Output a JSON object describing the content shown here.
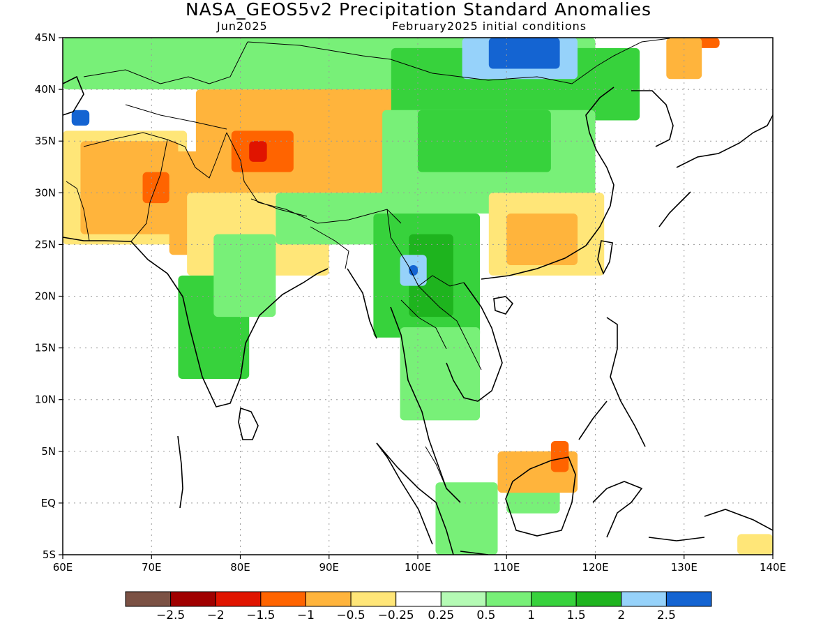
{
  "title": "NASA_GEOS5v2 Precipitation Standard Anomalies",
  "valid_month": "Jun2025",
  "init_conditions": "February2025 initial conditions",
  "colors": {
    "lt_m25": "#7b5144",
    "m25_m2": "#a00000",
    "m2_m15": "#e01400",
    "m15_m1": "#ff6400",
    "m1_m05": "#ffb43c",
    "m05_m025": "#ffe678",
    "neutral": "#ffffff",
    "p025_p05": "#b4fab4",
    "p05_p1": "#78f078",
    "p1_p15": "#37d23c",
    "p15_p2": "#1eb41e",
    "p2_p25": "#96d2fa",
    "gt_p25": "#1464d2"
  },
  "chart_data": {
    "type": "heatmap",
    "variable": "Precipitation Standard Anomalies",
    "x_range": [
      60,
      140
    ],
    "y_range": [
      -5,
      45
    ],
    "x_ticks": [
      "60E",
      "70E",
      "80E",
      "90E",
      "100E",
      "110E",
      "120E",
      "130E",
      "140E"
    ],
    "y_ticks": [
      "5S",
      "EQ",
      "5N",
      "10N",
      "15N",
      "20N",
      "25N",
      "30N",
      "35N",
      "40N",
      "45N"
    ],
    "colorbar": {
      "labels": [
        "-2.5",
        "-2",
        "-1.5",
        "-1",
        "-0.5",
        "-0.25",
        "0.25",
        "0.5",
        "1",
        "1.5",
        "2",
        "2.5"
      ],
      "bins": [
        "lt_m25",
        "m25_m2",
        "m2_m15",
        "m15_m1",
        "m1_m05",
        "m05_m025",
        "neutral",
        "p025_p05",
        "p05_p1",
        "p1_p15",
        "p15_p2",
        "p2_p25",
        "gt_p25"
      ]
    },
    "regions": [
      {
        "bin": "m05_m025",
        "lon": [
          60,
          74
        ],
        "lat": [
          25,
          36
        ]
      },
      {
        "bin": "m1_m05",
        "lon": [
          62,
          73
        ],
        "lat": [
          26,
          35
        ]
      },
      {
        "bin": "m1_m05",
        "lon": [
          72,
          82
        ],
        "lat": [
          24,
          34
        ]
      },
      {
        "bin": "m15_m1",
        "lon": [
          69,
          72
        ],
        "lat": [
          29,
          32
        ]
      },
      {
        "bin": "m1_m05",
        "lon": [
          75,
          97
        ],
        "lat": [
          30,
          40
        ]
      },
      {
        "bin": "m15_m1",
        "lon": [
          79,
          86
        ],
        "lat": [
          32,
          36
        ]
      },
      {
        "bin": "m2_m15",
        "lon": [
          81,
          83
        ],
        "lat": [
          33,
          35
        ]
      },
      {
        "bin": "m1_m05",
        "lon": [
          86,
          100
        ],
        "lat": [
          38,
          42
        ]
      },
      {
        "bin": "m05_m025",
        "lon": [
          74,
          90
        ],
        "lat": [
          22,
          30
        ]
      },
      {
        "bin": "p05_p1",
        "lon": [
          60,
          120
        ],
        "lat": [
          40,
          45
        ]
      },
      {
        "bin": "p1_p15",
        "lon": [
          97,
          125
        ],
        "lat": [
          37,
          44
        ]
      },
      {
        "bin": "p2_p25",
        "lon": [
          105,
          118
        ],
        "lat": [
          41,
          45
        ]
      },
      {
        "bin": "gt_p25",
        "lon": [
          108,
          116
        ],
        "lat": [
          42,
          45
        ]
      },
      {
        "bin": "gt_p25",
        "lon": [
          61,
          63
        ],
        "lat": [
          36.5,
          38
        ]
      },
      {
        "bin": "p05_p1",
        "lon": [
          96,
          120
        ],
        "lat": [
          28,
          38
        ]
      },
      {
        "bin": "p1_p15",
        "lon": [
          100,
          115
        ],
        "lat": [
          32,
          38
        ]
      },
      {
        "bin": "m05_m025",
        "lon": [
          108,
          121
        ],
        "lat": [
          22,
          30
        ]
      },
      {
        "bin": "m1_m05",
        "lon": [
          110,
          118
        ],
        "lat": [
          23,
          28
        ]
      },
      {
        "bin": "p05_p1",
        "lon": [
          84,
          98
        ],
        "lat": [
          25,
          30
        ]
      },
      {
        "bin": "p1_p15",
        "lon": [
          95,
          107
        ],
        "lat": [
          16,
          28
        ]
      },
      {
        "bin": "p15_p2",
        "lon": [
          99,
          104
        ],
        "lat": [
          18,
          26
        ]
      },
      {
        "bin": "p2_p25",
        "lon": [
          98,
          101
        ],
        "lat": [
          21,
          24
        ]
      },
      {
        "bin": "gt_p25",
        "lon": [
          99,
          100
        ],
        "lat": [
          22,
          23
        ]
      },
      {
        "bin": "p1_p15",
        "lon": [
          73,
          81
        ],
        "lat": [
          12,
          22
        ]
      },
      {
        "bin": "p05_p1",
        "lon": [
          77,
          84
        ],
        "lat": [
          18,
          26
        ]
      },
      {
        "bin": "p05_p1",
        "lon": [
          98,
          107
        ],
        "lat": [
          8,
          17
        ]
      },
      {
        "bin": "p05_p1",
        "lon": [
          102,
          109
        ],
        "lat": [
          -5,
          2
        ]
      },
      {
        "bin": "p05_p1",
        "lon": [
          110,
          116
        ],
        "lat": [
          -1,
          2
        ]
      },
      {
        "bin": "m1_m05",
        "lon": [
          109,
          118
        ],
        "lat": [
          1,
          5
        ]
      },
      {
        "bin": "m15_m1",
        "lon": [
          115,
          117
        ],
        "lat": [
          3,
          6
        ]
      },
      {
        "bin": "m05_m025",
        "lon": [
          136,
          140
        ],
        "lat": [
          -5,
          -3
        ]
      },
      {
        "bin": "m15_m1",
        "lon": [
          130,
          134
        ],
        "lat": [
          44,
          45
        ]
      },
      {
        "bin": "m1_m05",
        "lon": [
          128,
          132
        ],
        "lat": [
          41,
          45
        ]
      }
    ]
  }
}
